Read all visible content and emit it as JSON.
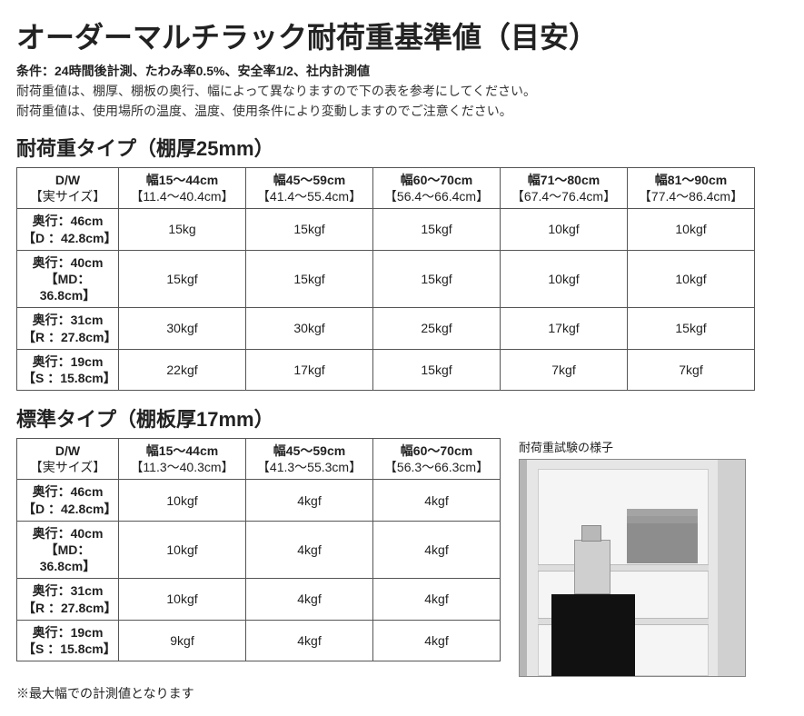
{
  "title": "オーダーマルチラック耐荷重基準値（目安）",
  "condition": "条件：24時間後計測、たわみ率0.5%、安全率1/2、社内計測値",
  "notes": [
    "耐荷重値は、棚厚、棚板の奥行、幅によって異なりますので下の表を参考にしてください。",
    "耐荷重値は、使用場所の温度、温度、使用条件により変動しますのでご注意ください。"
  ],
  "section1": {
    "heading": "耐荷重タイプ（棚厚25mm）",
    "columns": [
      {
        "l1": "D/W",
        "l2": "【実サイズ】"
      },
      {
        "l1": "幅15～44cm",
        "l2": "【11.4～40.4cm】"
      },
      {
        "l1": "幅45～59cm",
        "l2": "【41.4～55.4cm】"
      },
      {
        "l1": "幅60～70cm",
        "l2": "【56.4～66.4cm】"
      },
      {
        "l1": "幅71～80cm",
        "l2": "【67.4～76.4cm】"
      },
      {
        "l1": "幅81～90cm",
        "l2": "【77.4～86.4cm】"
      }
    ],
    "rows": [
      {
        "h1": "奥行：46cm",
        "h2": "【D ：42.8cm】",
        "v": [
          "15kg",
          "15kgf",
          "15kgf",
          "10kgf",
          "10kgf"
        ]
      },
      {
        "h1": "奥行：40cm",
        "h2": "【MD：36.8cm】",
        "v": [
          "15kgf",
          "15kgf",
          "15kgf",
          "10kgf",
          "10kgf"
        ]
      },
      {
        "h1": "奥行：31cm",
        "h2": "【R ：27.8cm】",
        "v": [
          "30kgf",
          "30kgf",
          "25kgf",
          "17kgf",
          "15kgf"
        ]
      },
      {
        "h1": "奥行：19cm",
        "h2": "【S ：15.8cm】",
        "v": [
          "22kgf",
          "17kgf",
          "15kgf",
          "7kgf",
          "7kgf"
        ]
      }
    ]
  },
  "section2": {
    "heading": "標準タイプ（棚板厚17mm）",
    "columns": [
      {
        "l1": "D/W",
        "l2": "【実サイズ】"
      },
      {
        "l1": "幅15～44cm",
        "l2": "【11.3～40.3cm】"
      },
      {
        "l1": "幅45～59cm",
        "l2": "【41.3～55.3cm】"
      },
      {
        "l1": "幅60～70cm",
        "l2": "【56.3～66.3cm】"
      }
    ],
    "rows": [
      {
        "h1": "奥行：46cm",
        "h2": "【D ：42.8cm】",
        "v": [
          "10kgf",
          "4kgf",
          "4kgf"
        ]
      },
      {
        "h1": "奥行：40cm",
        "h2": "【MD：36.8cm】",
        "v": [
          "10kgf",
          "4kgf",
          "4kgf"
        ]
      },
      {
        "h1": "奥行：31cm",
        "h2": "【R ：27.8cm】",
        "v": [
          "10kgf",
          "4kgf",
          "4kgf"
        ]
      },
      {
        "h1": "奥行：19cm",
        "h2": "【S ：15.8cm】",
        "v": [
          "9kgf",
          "4kgf",
          "4kgf"
        ]
      }
    ]
  },
  "photo_caption": "耐荷重試験の様子",
  "footnote": "※最大幅での計測値となります"
}
